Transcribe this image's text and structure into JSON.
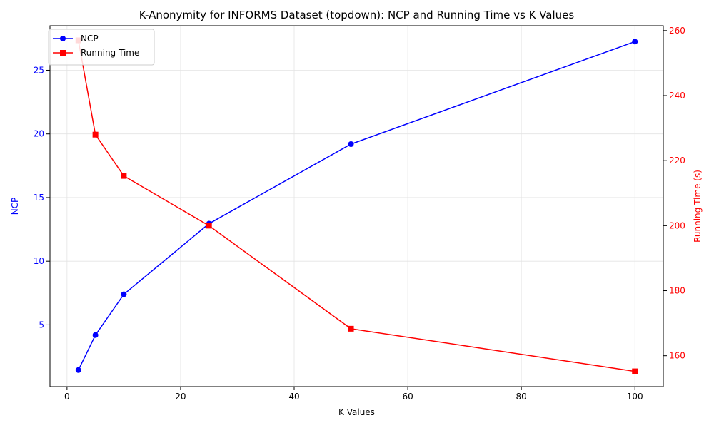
{
  "chart_data": {
    "type": "line",
    "title": "K-Anonymity for INFORMS Dataset (topdown): NCP and Running Time vs K Values",
    "xlabel": "K Values",
    "ylabel_left": "NCP",
    "ylabel_right": "Running Time (s)",
    "x": [
      2,
      5,
      10,
      25,
      50,
      100
    ],
    "xlim": [
      -3,
      105
    ],
    "ylim_left": [
      0.15,
      28.5
    ],
    "ylim_right": [
      150.5,
      261.5
    ],
    "x_ticks": [
      "0",
      "20",
      "40",
      "60",
      "80",
      "100"
    ],
    "y_left_ticks": [
      "5",
      "10",
      "15",
      "20",
      "25"
    ],
    "y_right_ticks": [
      "160",
      "180",
      "200",
      "220",
      "240",
      "260"
    ],
    "grid": true,
    "legend_position": "top-left",
    "series": [
      {
        "name": "NCP",
        "axis": "left",
        "color": "#0000ff",
        "marker": "circle",
        "values": [
          1.45,
          4.2,
          7.4,
          12.95,
          19.2,
          27.25
        ]
      },
      {
        "name": "Running Time",
        "axis": "right",
        "color": "#ff0000",
        "marker": "square",
        "values": [
          257,
          228,
          215.3,
          200,
          168.3,
          155.2
        ]
      }
    ],
    "left_axis_color": "#0000ff",
    "right_axis_color": "#ff0000"
  }
}
